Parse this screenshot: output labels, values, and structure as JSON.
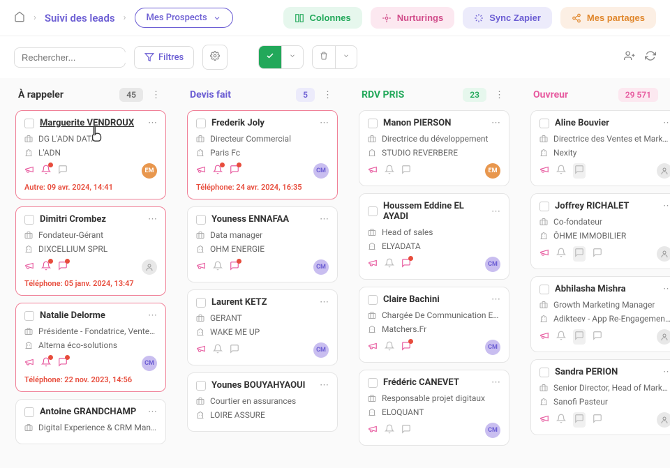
{
  "breadcrumb": {
    "title": "Suivi des leads"
  },
  "dropdown": {
    "label": "Mes Prospects"
  },
  "topButtons": {
    "colonnes": "Colonnes",
    "nurturings": "Nurturings",
    "sync": "Sync Zapier",
    "partages": "Mes partages"
  },
  "toolbar": {
    "searchPlaceholder": "Rechercher...",
    "filtres": "Filtres"
  },
  "columns": [
    {
      "title": "À rappeler",
      "count": "45",
      "titleColor": "#333",
      "badgeBg": "#e8e8e8",
      "badgeColor": "#666",
      "cards": [
        {
          "name": "Marguerite VENDROUX",
          "role": "DG L'ADN DATA",
          "company": "L'ADN",
          "due": "Autre: 09 avr. 2024, 14:41",
          "red": true,
          "avatar": "orange",
          "avatarText": "EM",
          "icons": [
            {
              "t": "mega",
              "c": "pink"
            },
            {
              "t": "bell",
              "c": "pink",
              "dot": true
            },
            {
              "t": "chat",
              "c": "muted"
            }
          ],
          "hovered": true
        },
        {
          "name": "Dimitri Crombez",
          "role": "Fondateur-Gérant",
          "company": "DIXCELLIUM SPRL",
          "due": "Téléphone: 05 janv. 2024, 13:47",
          "red": true,
          "avatar": "grey",
          "avatarText": "",
          "icons": [
            {
              "t": "mega",
              "c": "pink"
            },
            {
              "t": "bell",
              "c": "pink",
              "dot": true
            },
            {
              "t": "chat",
              "c": "pink",
              "dot": true
            }
          ]
        },
        {
          "name": "Natalie Delorme",
          "role": "Présidente - Fondatrice, Vente/Marke...",
          "company": "Alterna éco-solutions",
          "due": "Téléphone: 22 nov. 2023, 14:56",
          "red": true,
          "avatar": "purple",
          "avatarText": "CM",
          "icons": [
            {
              "t": "mega",
              "c": "pink"
            },
            {
              "t": "bell",
              "c": "pink",
              "dot": true
            },
            {
              "t": "chat",
              "c": "pink",
              "dot": true
            }
          ]
        },
        {
          "name": "Antoine GRANDCHAMP",
          "role": "Digital Experience & CRM Manager",
          "company": "",
          "due": "",
          "avatar": "grey",
          "avatarText": "",
          "icons": []
        }
      ]
    },
    {
      "title": "Devis fait",
      "count": "5",
      "titleColor": "#6b5dd3",
      "badgeBg": "#ecebfb",
      "badgeColor": "#6b5dd3",
      "cards": [
        {
          "name": "Frederik Joly",
          "role": "Directeur Commercial",
          "company": "Paris Fc",
          "due": "Téléphone: 24 avr. 2024, 16:35",
          "red": true,
          "avatar": "purple",
          "avatarText": "CM",
          "icons": [
            {
              "t": "mega",
              "c": "pink"
            },
            {
              "t": "bell",
              "c": "pink",
              "dot": true
            },
            {
              "t": "chat",
              "c": "pink",
              "dot": true
            }
          ]
        },
        {
          "name": "Youness ENNAFAA",
          "role": "Data manager",
          "company": "OHM ENERGIE",
          "due": "",
          "avatar": "purple",
          "avatarText": "CM",
          "icons": [
            {
              "t": "mega",
              "c": "pink"
            },
            {
              "t": "bell",
              "c": "muted"
            },
            {
              "t": "chat",
              "c": "pink",
              "dot": true
            }
          ]
        },
        {
          "name": "Laurent KETZ",
          "role": "GERANT",
          "company": "WAKE ME UP",
          "due": "",
          "avatar": "purple",
          "avatarText": "CM",
          "icons": [
            {
              "t": "mega",
              "c": "pink"
            },
            {
              "t": "bell",
              "c": "muted"
            },
            {
              "t": "chat",
              "c": "muted"
            }
          ]
        },
        {
          "name": "Younes BOUYAHYAOUI",
          "role": "Courtier en assurances",
          "company": "LOIRE ASSURE",
          "due": "",
          "avatar": "purple",
          "avatarText": "CM",
          "icons": []
        }
      ]
    },
    {
      "title": "RDV PRIS",
      "count": "23",
      "titleColor": "#22a85a",
      "badgeBg": "#e6f7ed",
      "badgeColor": "#22a85a",
      "cards": [
        {
          "name": "Manon PIERSON",
          "role": "Directrice du développement",
          "company": "STUDIO REVERBERE",
          "due": "",
          "avatar": "orange",
          "avatarText": "EM",
          "icons": [
            {
              "t": "mega",
              "c": "pink"
            },
            {
              "t": "bell",
              "c": "muted"
            },
            {
              "t": "chat",
              "c": "muted"
            }
          ]
        },
        {
          "name": "Houssem Eddine EL AYADI",
          "role": "Head of sales",
          "company": "ELYADATA",
          "due": "",
          "avatar": "purple",
          "avatarText": "CM",
          "icons": [
            {
              "t": "mega",
              "c": "pink"
            },
            {
              "t": "bell",
              "c": "muted"
            },
            {
              "t": "chat",
              "c": "pink",
              "dot": true
            }
          ]
        },
        {
          "name": "Claire Bachini",
          "role": "Chargée De Communication Et Rédac...",
          "company": "Matchers.Fr",
          "due": "",
          "avatar": "purple",
          "avatarText": "CM",
          "icons": [
            {
              "t": "mega",
              "c": "pink"
            },
            {
              "t": "bell",
              "c": "muted"
            },
            {
              "t": "chat",
              "c": "pink",
              "dot": true
            }
          ]
        },
        {
          "name": "Frédéric CANEVET",
          "role": "Responsable projet digitaux",
          "company": "ELOQUANT",
          "due": "",
          "avatar": "purple",
          "avatarText": "CM",
          "icons": [
            {
              "t": "mega",
              "c": "pink"
            },
            {
              "t": "bell",
              "c": "muted"
            },
            {
              "t": "chat",
              "c": "muted"
            }
          ]
        }
      ]
    },
    {
      "title": "Ouvreur",
      "count": "29 571",
      "titleColor": "#e75a9f",
      "badgeBg": "#fce8f0",
      "badgeColor": "#e75a9f",
      "cards": [
        {
          "name": "Aline Bouvier",
          "role": "Directrice des Ventes et Marketing ré...",
          "company": "Nexity",
          "due": "",
          "avatar": "grey",
          "avatarText": "",
          "icons": [
            {
              "t": "mega",
              "c": "pink"
            },
            {
              "t": "bell",
              "c": "muted"
            },
            {
              "t": "chat",
              "c": "muted",
              "box": true
            }
          ]
        },
        {
          "name": "Joffrey RICHALET",
          "role": "Co-fondateur",
          "company": "ÔHME IMMOBILIER",
          "due": "",
          "avatar": "grey",
          "avatarText": "",
          "icons": [
            {
              "t": "mega",
              "c": "pink"
            },
            {
              "t": "bell",
              "c": "muted"
            },
            {
              "t": "chat",
              "c": "muted",
              "box": true
            },
            {
              "t": "chat",
              "c": "muted"
            }
          ]
        },
        {
          "name": "Abhilasha Mishra",
          "role": "Growth Marketing Manager",
          "company": "Adikteev - App Re-Engagement Platfor...",
          "due": "",
          "avatar": "grey",
          "avatarText": "",
          "icons": [
            {
              "t": "mega",
              "c": "pink"
            },
            {
              "t": "bell",
              "c": "muted"
            },
            {
              "t": "chat",
              "c": "muted",
              "box": true
            },
            {
              "t": "chat",
              "c": "muted"
            }
          ]
        },
        {
          "name": "Sandra PERION",
          "role": "Senior Director, Head of Marketing, FL...",
          "company": "Sanofi Pasteur",
          "due": "",
          "avatar": "grey",
          "avatarText": "",
          "icons": [
            {
              "t": "mega",
              "c": "pink"
            },
            {
              "t": "bell",
              "c": "muted"
            },
            {
              "t": "chat",
              "c": "muted",
              "box": true
            },
            {
              "t": "chat",
              "c": "muted"
            }
          ]
        }
      ]
    }
  ]
}
